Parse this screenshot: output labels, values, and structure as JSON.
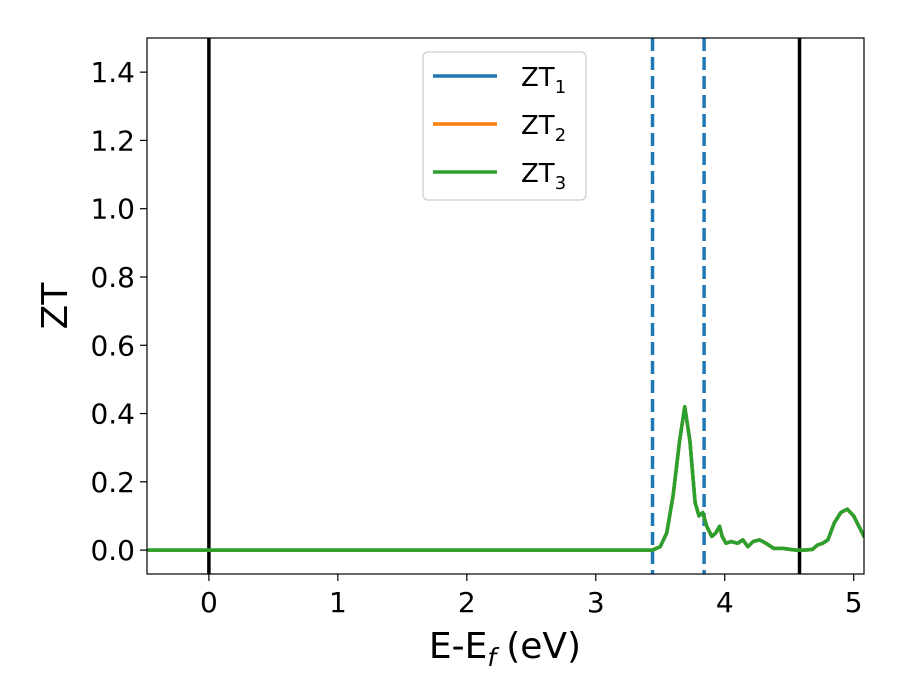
{
  "chart_data": {
    "type": "line",
    "xlabel": "E-E",
    "xlabel_subscript": "f",
    "xlabel_unit": "(eV)",
    "ylabel": "ZT",
    "xlim": [
      -0.48,
      5.08
    ],
    "ylim": [
      -0.07,
      1.5
    ],
    "x_ticks": [
      0,
      1,
      2,
      3,
      4,
      5
    ],
    "x_tick_labels": [
      "0",
      "1",
      "2",
      "3",
      "4",
      "5"
    ],
    "y_ticks": [
      0.0,
      0.2,
      0.4,
      0.6,
      0.8,
      1.0,
      1.2,
      1.4
    ],
    "y_tick_labels": [
      "0.0",
      "0.2",
      "0.4",
      "0.6",
      "0.8",
      "1.0",
      "1.2",
      "1.4"
    ],
    "grid": false,
    "legend_position": "top-center",
    "vertical_lines": [
      {
        "x": 0.0,
        "style": "solid",
        "color": "#000000"
      },
      {
        "x": 3.44,
        "style": "dashed",
        "color": "#1f77b4"
      },
      {
        "x": 3.84,
        "style": "dashed",
        "color": "#1f77b4"
      },
      {
        "x": 4.58,
        "style": "solid",
        "color": "#000000"
      }
    ],
    "series": [
      {
        "name": "ZT",
        "name_subscript": "1",
        "color": "#1f77b4",
        "x": [
          -0.48,
          3.0,
          3.44,
          3.5,
          3.55,
          3.6,
          3.65,
          3.69,
          3.73,
          3.77,
          3.8,
          3.83,
          3.86,
          3.9,
          3.93,
          3.96,
          3.98,
          4.01,
          4.05,
          4.1,
          4.14,
          4.18,
          4.22,
          4.27,
          4.32,
          4.38,
          4.45,
          4.55,
          4.62,
          4.68,
          4.72,
          4.76,
          4.8,
          4.85,
          4.9,
          4.95,
          5.0,
          5.04,
          5.08
        ],
        "y": [
          0.0,
          0.0,
          0.0,
          0.01,
          0.05,
          0.16,
          0.32,
          0.42,
          0.32,
          0.14,
          0.1,
          0.11,
          0.07,
          0.04,
          0.05,
          0.07,
          0.04,
          0.02,
          0.025,
          0.02,
          0.03,
          0.01,
          0.025,
          0.03,
          0.02,
          0.005,
          0.005,
          0.0,
          0.0,
          0.002,
          0.015,
          0.02,
          0.03,
          0.08,
          0.11,
          0.12,
          0.1,
          0.07,
          0.04
        ]
      },
      {
        "name": "ZT",
        "name_subscript": "2",
        "color": "#ff7f0e",
        "x": [
          -0.48,
          3.0,
          3.44,
          3.5,
          3.55,
          3.6,
          3.65,
          3.69,
          3.73,
          3.77,
          3.8,
          3.83,
          3.86,
          3.9,
          3.93,
          3.96,
          3.98,
          4.01,
          4.05,
          4.1,
          4.14,
          4.18,
          4.22,
          4.27,
          4.32,
          4.38,
          4.45,
          4.55,
          4.62,
          4.68,
          4.72,
          4.76,
          4.8,
          4.85,
          4.9,
          4.95,
          5.0,
          5.04,
          5.08
        ],
        "y": [
          0.0,
          0.0,
          0.0,
          0.01,
          0.05,
          0.16,
          0.32,
          0.42,
          0.32,
          0.14,
          0.1,
          0.11,
          0.07,
          0.04,
          0.05,
          0.07,
          0.04,
          0.02,
          0.025,
          0.02,
          0.03,
          0.01,
          0.025,
          0.03,
          0.02,
          0.005,
          0.005,
          0.0,
          0.0,
          0.002,
          0.015,
          0.02,
          0.03,
          0.08,
          0.11,
          0.12,
          0.1,
          0.07,
          0.04
        ]
      },
      {
        "name": "ZT",
        "name_subscript": "3",
        "color": "#2ca02c",
        "x": [
          -0.48,
          3.0,
          3.44,
          3.5,
          3.55,
          3.6,
          3.65,
          3.69,
          3.73,
          3.77,
          3.8,
          3.83,
          3.86,
          3.9,
          3.93,
          3.96,
          3.98,
          4.01,
          4.05,
          4.1,
          4.14,
          4.18,
          4.22,
          4.27,
          4.32,
          4.38,
          4.45,
          4.55,
          4.62,
          4.68,
          4.72,
          4.76,
          4.8,
          4.85,
          4.9,
          4.95,
          5.0,
          5.04,
          5.08
        ],
        "y": [
          0.0,
          0.0,
          0.0,
          0.01,
          0.05,
          0.16,
          0.32,
          0.42,
          0.32,
          0.14,
          0.1,
          0.11,
          0.07,
          0.04,
          0.05,
          0.07,
          0.04,
          0.02,
          0.025,
          0.02,
          0.03,
          0.01,
          0.025,
          0.03,
          0.02,
          0.005,
          0.005,
          0.0,
          0.0,
          0.002,
          0.015,
          0.02,
          0.03,
          0.08,
          0.11,
          0.12,
          0.1,
          0.07,
          0.04
        ]
      }
    ]
  }
}
